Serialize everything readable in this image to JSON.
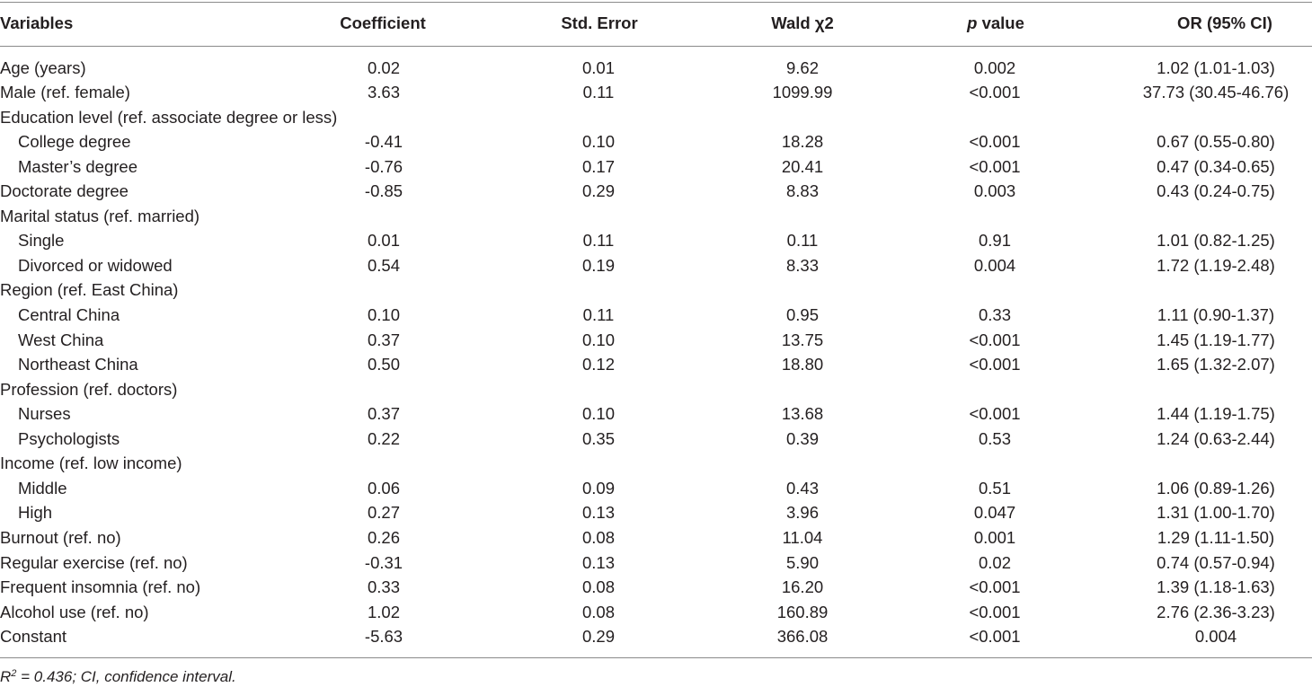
{
  "header": {
    "variables": "Variables",
    "coefficient": "Coefficient",
    "std_error": "Std. Error",
    "wald": "Wald χ2",
    "p_italic": "p",
    "p_rest": " value",
    "or_ci": "OR (95% CI)"
  },
  "rows": [
    {
      "label": "Age (years)",
      "coef": "0.02",
      "se": "0.01",
      "wald": "9.62",
      "p": "0.002",
      "or": "1.02 (1.01-1.03)"
    },
    {
      "label": "Male (ref. female)",
      "coef": "3.63",
      "se": "0.11",
      "wald": "1099.99",
      "p": "<0.001",
      "or": "37.73 (30.45-46.76)"
    },
    {
      "label": "Education level (ref. associate degree or less)",
      "coef": "",
      "se": "",
      "wald": "",
      "p": "",
      "or": ""
    },
    {
      "label": "College degree",
      "coef": "-0.41",
      "se": "0.10",
      "wald": "18.28",
      "p": "<0.001",
      "or": "0.67 (0.55-0.80)"
    },
    {
      "label": "Master’s degree",
      "coef": "-0.76",
      "se": "0.17",
      "wald": "20.41",
      "p": "<0.001",
      "or": "0.47 (0.34-0.65)"
    },
    {
      "label": "Doctorate degree",
      "coef": "-0.85",
      "se": "0.29",
      "wald": "8.83",
      "p": "0.003",
      "or": "0.43 (0.24-0.75)"
    },
    {
      "label": "Marital status (ref. married)",
      "coef": "",
      "se": "",
      "wald": "",
      "p": "",
      "or": ""
    },
    {
      "label": "Single",
      "coef": "0.01",
      "se": "0.11",
      "wald": "0.11",
      "p": "0.91",
      "or": "1.01 (0.82-1.25)"
    },
    {
      "label": "Divorced or widowed",
      "coef": "0.54",
      "se": "0.19",
      "wald": "8.33",
      "p": "0.004",
      "or": "1.72 (1.19-2.48)"
    },
    {
      "label": "Region (ref. East China)",
      "coef": "",
      "se": "",
      "wald": "",
      "p": "",
      "or": ""
    },
    {
      "label": "Central China",
      "coef": "0.10",
      "se": "0.11",
      "wald": "0.95",
      "p": "0.33",
      "or": "1.11 (0.90-1.37)"
    },
    {
      "label": "West China",
      "coef": "0.37",
      "se": "0.10",
      "wald": "13.75",
      "p": "<0.001",
      "or": "1.45 (1.19-1.77)"
    },
    {
      "label": "Northeast China",
      "coef": "0.50",
      "se": "0.12",
      "wald": "18.80",
      "p": "<0.001",
      "or": "1.65 (1.32-2.07)"
    },
    {
      "label": "Profession (ref. doctors)",
      "coef": "",
      "se": "",
      "wald": "",
      "p": "",
      "or": ""
    },
    {
      "label": "Nurses",
      "coef": "0.37",
      "se": "0.10",
      "wald": "13.68",
      "p": "<0.001",
      "or": "1.44 (1.19-1.75)"
    },
    {
      "label": "Psychologists",
      "coef": "0.22",
      "se": "0.35",
      "wald": "0.39",
      "p": "0.53",
      "or": "1.24 (0.63-2.44)"
    },
    {
      "label": "Income (ref. low income)",
      "coef": "",
      "se": "",
      "wald": "",
      "p": "",
      "or": ""
    },
    {
      "label": "Middle",
      "coef": "0.06",
      "se": "0.09",
      "wald": "0.43",
      "p": "0.51",
      "or": "1.06 (0.89-1.26)"
    },
    {
      "label": "High",
      "coef": "0.27",
      "se": "0.13",
      "wald": "3.96",
      "p": "0.047",
      "or": "1.31 (1.00-1.70)"
    },
    {
      "label": "Burnout (ref. no)",
      "coef": "0.26",
      "se": "0.08",
      "wald": "11.04",
      "p": "0.001",
      "or": "1.29 (1.11-1.50)"
    },
    {
      "label": "Regular exercise (ref. no)",
      "coef": "-0.31",
      "se": "0.13",
      "wald": "5.90",
      "p": "0.02",
      "or": "0.74 (0.57-0.94)"
    },
    {
      "label": "Frequent insomnia (ref. no)",
      "coef": "0.33",
      "se": "0.08",
      "wald": "16.20",
      "p": "<0.001",
      "or": "1.39 (1.18-1.63)"
    },
    {
      "label": "Alcohol use (ref. no)",
      "coef": "1.02",
      "se": "0.08",
      "wald": "160.89",
      "p": "<0.001",
      "or": "2.76 (2.36-3.23)"
    },
    {
      "label": "Constant",
      "coef": "-5.63",
      "se": "0.29",
      "wald": "366.08",
      "p": "<0.001",
      "or": "0.004"
    }
  ],
  "footnote": {
    "r": "R",
    "r_sup": "2",
    "rest": " = 0.436; CI, confidence interval."
  }
}
